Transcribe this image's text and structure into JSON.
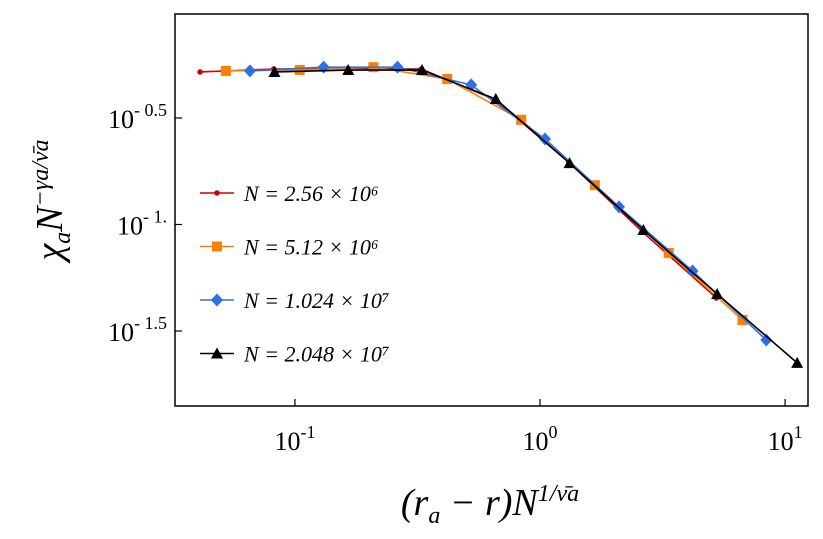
{
  "chart_data": {
    "type": "line",
    "x_label": [
      "(r",
      "a",
      " − r)N",
      "1/ν̄a"
    ],
    "y_label": [
      "χ",
      "a",
      "N",
      "−γa/ν̄a"
    ],
    "log_x": true,
    "log_y": true,
    "xlim": [
      0.0324,
      12.4
    ],
    "ylim": [
      0.01406,
      0.973
    ],
    "xticks": [
      {
        "value": 0.1,
        "label": {
          "base": "10",
          "exponent": "-1"
        }
      },
      {
        "value": 1,
        "label": {
          "base": "10",
          "exponent": "0"
        }
      },
      {
        "value": 10,
        "label": {
          "base": "10",
          "exponent": "1"
        }
      }
    ],
    "yticks": [
      {
        "value": 0.3162,
        "label": {
          "base": "10",
          "exponent": "- 0.5"
        }
      },
      {
        "value": 0.1,
        "label": {
          "base": "10",
          "exponent": "- 1."
        }
      },
      {
        "value": 0.03162,
        "label": {
          "base": "10",
          "exponent": "- 1.5"
        }
      }
    ],
    "legend": "center-left",
    "series": [
      {
        "name": "N = 2.56 × 10⁶",
        "color": "#d40000",
        "marker": "circle",
        "x": [
          0.041,
          0.082,
          0.164,
          0.328,
          0.656,
          1.31,
          2.62,
          5.24
        ],
        "values": [
          0.52,
          0.537,
          0.541,
          0.537,
          0.385,
          0.196,
          0.0923,
          0.0452
        ]
      },
      {
        "name": "N = 5.12 × 10⁶",
        "color": "#ff8000",
        "marker": "square",
        "x": [
          0.0523,
          0.1046,
          0.209,
          0.418,
          0.837,
          1.674,
          3.35,
          6.7
        ],
        "values": [
          0.526,
          0.531,
          0.548,
          0.482,
          0.31,
          0.153,
          0.0735,
          0.0356
        ]
      },
      {
        "name": "N = 1.024 × 10⁷",
        "color": "#2e6fe6",
        "marker": "diamond",
        "x": [
          0.0655,
          0.131,
          0.262,
          0.524,
          1.048,
          2.1,
          4.19,
          8.38
        ],
        "values": [
          0.526,
          0.548,
          0.548,
          0.452,
          0.252,
          0.121,
          0.0605,
          0.0287
        ]
      },
      {
        "name": "N = 2.048 × 10⁷",
        "color": "#000000",
        "marker": "triangle",
        "x": [
          0.0825,
          0.165,
          0.33,
          0.66,
          1.32,
          2.64,
          5.28,
          11.2
        ],
        "values": [
          0.52,
          0.531,
          0.531,
          0.388,
          0.194,
          0.0942,
          0.0472,
          0.0224
        ]
      }
    ]
  }
}
